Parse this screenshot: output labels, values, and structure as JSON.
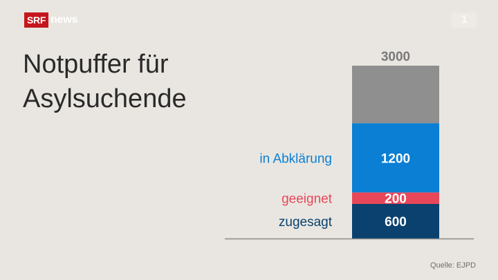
{
  "brand": {
    "logo_box": "SRF",
    "logo_text": "news",
    "watermark": "1"
  },
  "title_lines": [
    "Notpuffer für",
    "Asylsuchende"
  ],
  "source": "Quelle: EJPD",
  "colors": {
    "background": "#e9e6e1",
    "brand_red": "#c5161d",
    "total_gray": "#8f8f8f",
    "abklaerung_blue": "#0a7fd4",
    "geeignet_red": "#e8475a",
    "zugesagt_navy": "#0a416e"
  },
  "chart_data": {
    "type": "bar",
    "stacked": true,
    "total": {
      "value": 3000,
      "label": "3000"
    },
    "segments": [
      {
        "name": "zugesagt",
        "value": 600,
        "label": "600",
        "color": "#0a416e",
        "text_color": "#0a416e"
      },
      {
        "name": "geeignet",
        "value": 200,
        "label": "200",
        "color": "#e8475a",
        "text_color": "#e8475a"
      },
      {
        "name": "in Abklärung",
        "value": 1200,
        "label": "1200",
        "color": "#0a7fd4",
        "text_color": "#0a7fd4"
      }
    ],
    "remainder_color": "#8f8f8f"
  }
}
